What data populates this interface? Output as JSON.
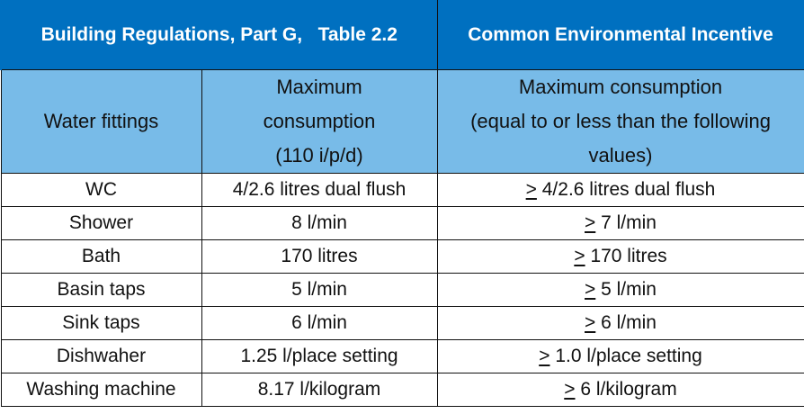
{
  "table": {
    "title_left": "Building Regulations, Part G,   Table 2.2",
    "title_right": "Common Environmental Incentive",
    "headers": {
      "col1": "Water fittings",
      "col2_line1": "Maximum",
      "col2_line2": "consumption",
      "col2_line3": "(110 i/p/d)",
      "col3_line1": "Maximum consumption",
      "col3_line2": "(equal to or less than the following",
      "col3_line3": "values)"
    },
    "comparator_symbol": ">",
    "rows": [
      {
        "fitting": "WC",
        "part_g": "4/2.6 litres dual flush",
        "incentive": "4/2.6 litres dual flush"
      },
      {
        "fitting": "Shower",
        "part_g": "8 l/min",
        "incentive": "7 l/min"
      },
      {
        "fitting": "Bath",
        "part_g": "170 litres",
        "incentive": "170 litres"
      },
      {
        "fitting": "Basin taps",
        "part_g": "5 l/min",
        "incentive": "5 l/min"
      },
      {
        "fitting": "Sink taps",
        "part_g": "6 l/min",
        "incentive": "6 l/min"
      },
      {
        "fitting": "Dishwaher",
        "part_g": "1.25 l/place setting",
        "incentive": "1.0 l/place setting"
      },
      {
        "fitting": "Washing machine",
        "part_g": "8.17 l/kilogram",
        "incentive": "6 l/kilogram"
      }
    ],
    "colors": {
      "title_bg": "#0070c0",
      "header_bg": "#78bbe8",
      "border": "#111111"
    }
  }
}
